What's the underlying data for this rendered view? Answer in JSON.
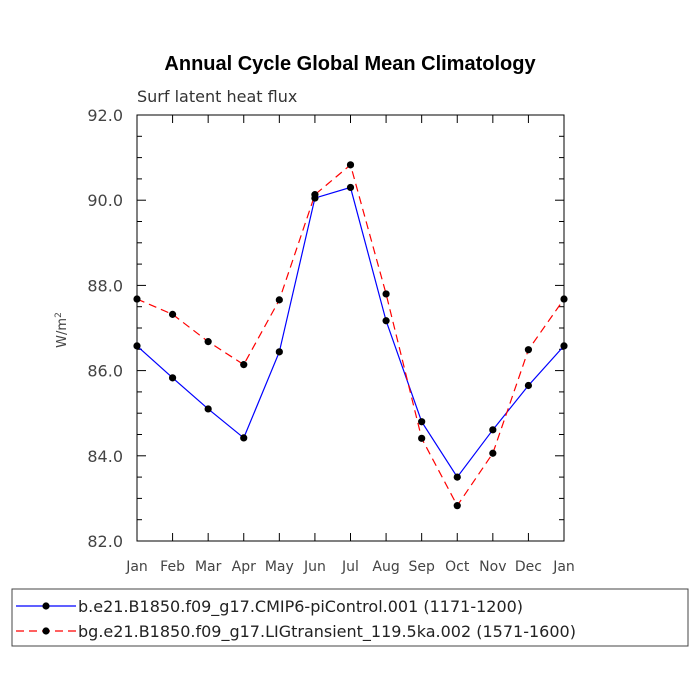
{
  "chart_data": {
    "type": "line",
    "title": "Annual Cycle Global Mean Climatology",
    "subtitle": "Surf latent heat flux",
    "ylabel": "W/m",
    "ylabel_sup": "2",
    "xlabel": "",
    "categories": [
      "Jan",
      "Feb",
      "Mar",
      "Apr",
      "May",
      "Jun",
      "Jul",
      "Aug",
      "Sep",
      "Oct",
      "Nov",
      "Dec",
      "Jan"
    ],
    "ylim": [
      82.0,
      92.0
    ],
    "yticks": [
      "82.0",
      "84.0",
      "86.0",
      "88.0",
      "90.0",
      "92.0"
    ],
    "ytick_values": [
      82,
      84,
      86,
      88,
      90,
      92
    ],
    "grid": false,
    "legend_position": "bottom",
    "series": [
      {
        "name": "b.e21.B1850.f09_g17.CMIP6-piControl.001 (1171-1200)",
        "color": "#0000ff",
        "dash": "solid",
        "values": [
          86.58,
          85.83,
          85.1,
          84.42,
          86.44,
          90.05,
          90.3,
          87.17,
          84.8,
          83.5,
          84.61,
          85.65,
          86.58
        ]
      },
      {
        "name": "bg.e21.B1850.f09_g17.LIGtransient_119.5ka.002 (1571-1600)",
        "color": "#ff0000",
        "dash": "dashed",
        "values": [
          87.68,
          87.32,
          86.68,
          86.14,
          87.66,
          90.13,
          90.83,
          87.8,
          84.41,
          82.83,
          84.06,
          86.49,
          87.68
        ]
      }
    ]
  }
}
